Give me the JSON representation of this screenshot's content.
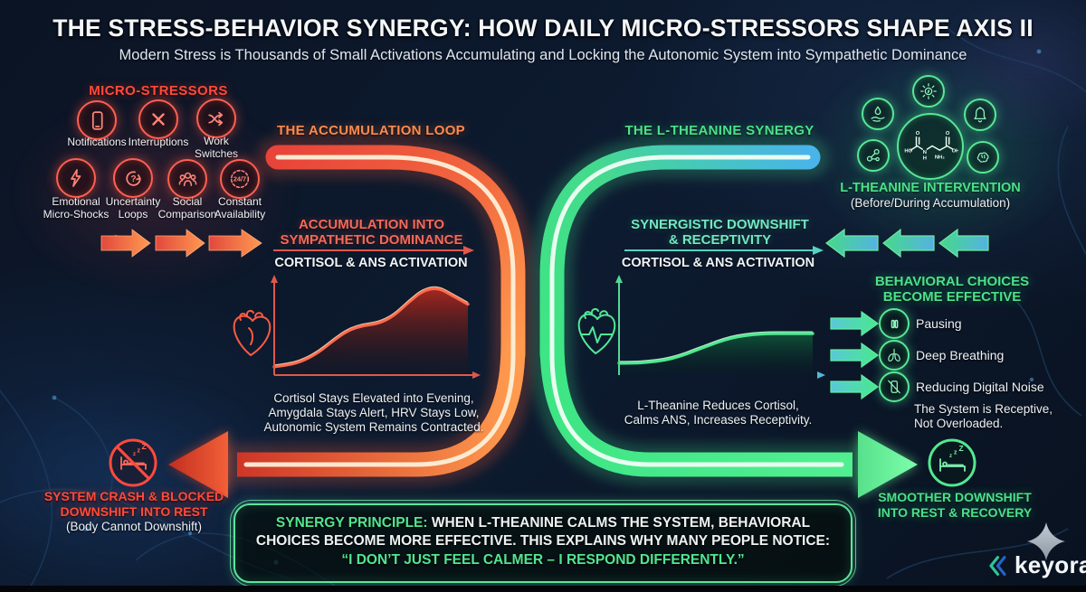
{
  "page": {
    "title": "THE STRESS-BEHAVIOR SYNERGY: HOW DAILY MICRO-STRESSORS SHAPE AXIS II",
    "subtitle": "Modern Stress is Thousands of Small Activations Accumulating and Locking the Autonomic System into Sympathetic Dominance"
  },
  "micro_stressors": {
    "heading": "MICRO-STRESSORS",
    "items": [
      {
        "label": "Notifications",
        "icon": "phone-icon"
      },
      {
        "label": "Interruptions",
        "icon": "x-icon"
      },
      {
        "label": "Work Switches",
        "icon": "shuffle-icon"
      },
      {
        "label": "Emotional Micro-Shocks",
        "icon": "lightning-icon"
      },
      {
        "label": "Uncertainty Loops",
        "icon": "question-loop-icon",
        "icon_text": "?"
      },
      {
        "label": "Social Comparison",
        "icon": "people-icon"
      },
      {
        "label": "Constant Availability",
        "icon": "24-7-clock-icon",
        "icon_text": "24/7"
      }
    ]
  },
  "accumulation": {
    "loop_label": "THE ACCUMULATION LOOP",
    "subheading_lines": [
      "ACCUMULATION INTO",
      "SYMPATHETIC DOMINANCE"
    ],
    "chart_title": "CORTISOL & ANS ACTIVATION",
    "caption_lines": [
      "Cortisol Stays Elevated into Evening,",
      "Amygdala Stays Alert, HRV Stays Low,",
      "Autonomic System Remains Contracted."
    ]
  },
  "synergy": {
    "loop_label": "THE L-THEANINE SYNERGY",
    "subheading_lines": [
      "SYNERGISTIC DOWNSHIFT",
      "& RECEPTIVITY"
    ],
    "chart_title": "CORTISOL & ANS ACTIVATION",
    "caption_lines": [
      "L-Theanine Reduces Cortisol,",
      "Calms ANS, Increases Receptivity."
    ]
  },
  "intervention": {
    "heading": "L-THEANINE INTERVENTION",
    "subheading": "(Before/During Accumulation)",
    "center_icon": "l-theanine-molecule-icon",
    "satellite_icons": [
      "sun-energy-icon",
      "hand-drop-icon",
      "bell-icon",
      "molecule-bonds-icon",
      "brain-icon"
    ],
    "molecule_labels": {
      "ho": "HO",
      "o1": "O",
      "n": "N",
      "h": "H",
      "nh2": "NH₂",
      "o2": "O",
      "oh": "OH"
    }
  },
  "behavior": {
    "heading_lines": [
      "BEHAVIORAL CHOICES",
      "BECOME EFFECTIVE"
    ],
    "items": [
      {
        "label": "Pausing",
        "icon": "pause-icon"
      },
      {
        "label": "Deep Breathing",
        "icon": "lungs-icon"
      },
      {
        "label": "Reducing Digital Noise",
        "icon": "phone-off-icon"
      }
    ],
    "note_lines": [
      "The System is Receptive,",
      "Not Overloaded."
    ]
  },
  "crash": {
    "heading_lines": [
      "SYSTEM CRASH & BLOCKED",
      "DOWNSHIFT INTO REST"
    ],
    "subtext": "(Body Cannot Downshift)",
    "icon": "no-sleep-icon"
  },
  "recovery": {
    "heading_lines": [
      "SMOOTHER DOWNSHIFT",
      "INTO REST & RECOVERY"
    ],
    "icon": "sleep-icon"
  },
  "principle": {
    "lead": "SYNERGY PRINCIPLE:",
    "body": "WHEN L-THEANINE CALMS THE SYSTEM, BEHAVIORAL CHOICES BECOME MORE EFFECTIVE. THIS EXPLAINS WHY MANY PEOPLE NOTICE:",
    "quote": "“I DON’T JUST FEEL CALMER – I RESPOND DIFFERENTLY.”"
  },
  "brand": {
    "name": "keyora"
  },
  "icons": {
    "zzz": [
      "z",
      "z",
      "Z"
    ]
  },
  "colors": {
    "background": "#0c1626",
    "stress_red": "#ff5242",
    "stress_orange": "#ff9a4e",
    "calm_green": "#4ce08c",
    "calm_teal": "#6fe8c4",
    "calm_blue": "#4ab4e8",
    "text_white": "#eef3f7"
  },
  "chart_data": [
    {
      "id": "accumulation-curve",
      "type": "area",
      "title": "CORTISOL & ANS ACTIVATION",
      "x_axis": "time of day (unlabeled)",
      "y_axis": "activation level (unlabeled)",
      "ylim": [
        0,
        100
      ],
      "values": [
        8,
        10,
        15,
        24,
        37,
        48,
        53,
        55,
        63,
        78,
        91,
        94,
        85,
        76
      ],
      "line_color": "#ff6a4d",
      "annotation": "Cortisol rises through the day, peaks late and stays elevated into evening"
    },
    {
      "id": "ltheanine-curve",
      "type": "area",
      "title": "CORTISOL & ANS ACTIVATION",
      "x_axis": "time of day (unlabeled)",
      "y_axis": "activation level (unlabeled)",
      "ylim": [
        0,
        100
      ],
      "values": [
        12,
        12,
        13,
        15,
        19,
        25,
        31,
        37,
        41,
        43,
        44,
        44,
        44,
        44
      ],
      "line_color": "#4ee88f",
      "annotation": "Activation rises gently and plateaus at a calm moderate level"
    }
  ]
}
